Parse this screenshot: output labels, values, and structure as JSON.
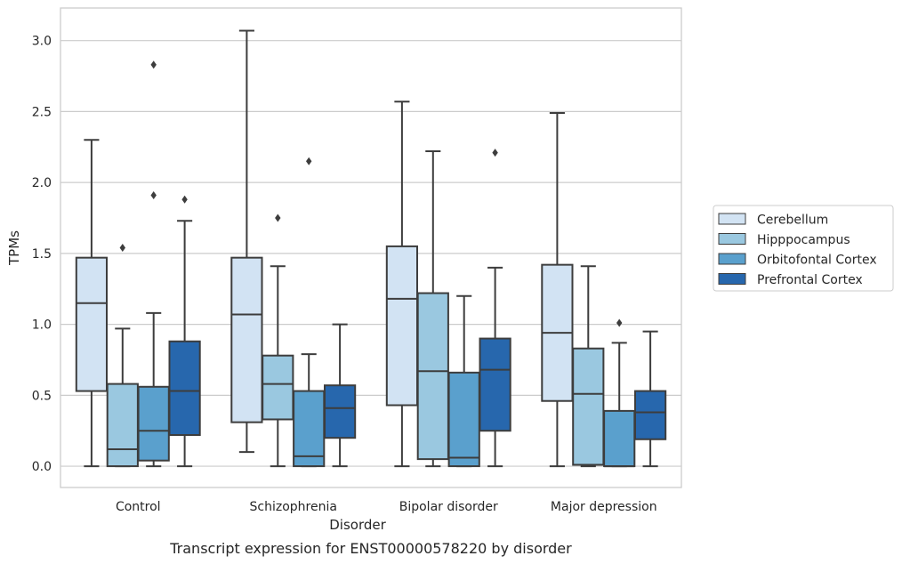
{
  "caption": "Transcript expression for ENST00000578220 by disorder",
  "chart_data": {
    "type": "box",
    "title": "",
    "xlabel": "Disorder",
    "ylabel": "TPMs",
    "ylim": [
      -0.15,
      3.23
    ],
    "yticks": [
      0.0,
      0.5,
      1.0,
      1.5,
      2.0,
      2.5,
      3.0
    ],
    "ytick_labels": [
      "0.0",
      "0.5",
      "1.0",
      "1.5",
      "2.0",
      "2.5",
      "3.0"
    ],
    "grid": "horizontal",
    "legend_position": "right",
    "categories": [
      "Control",
      "Schizophrenia",
      "Bipolar disorder",
      "Major depression"
    ],
    "series": [
      {
        "name": "Cerebellum",
        "color": "#d2e3f3",
        "boxes": [
          {
            "whisker_low": 0.0,
            "q1": 0.53,
            "median": 1.15,
            "q3": 1.47,
            "whisker_high": 2.3,
            "outliers": []
          },
          {
            "whisker_low": 0.1,
            "q1": 0.31,
            "median": 1.07,
            "q3": 1.47,
            "whisker_high": 3.07,
            "outliers": []
          },
          {
            "whisker_low": 0.0,
            "q1": 0.43,
            "median": 1.18,
            "q3": 1.55,
            "whisker_high": 2.57,
            "outliers": []
          },
          {
            "whisker_low": 0.0,
            "q1": 0.46,
            "median": 0.94,
            "q3": 1.42,
            "whisker_high": 2.49,
            "outliers": []
          }
        ]
      },
      {
        "name": "Hipppocampus",
        "color": "#9ac8e0",
        "boxes": [
          {
            "whisker_low": 0.0,
            "q1": 0.0,
            "median": 0.12,
            "q3": 0.58,
            "whisker_high": 0.97,
            "outliers": [
              1.54
            ]
          },
          {
            "whisker_low": 0.0,
            "q1": 0.33,
            "median": 0.58,
            "q3": 0.78,
            "whisker_high": 1.41,
            "outliers": [
              1.75
            ]
          },
          {
            "whisker_low": 0.0,
            "q1": 0.05,
            "median": 0.67,
            "q3": 1.22,
            "whisker_high": 2.22,
            "outliers": []
          },
          {
            "whisker_low": 0.0,
            "q1": 0.01,
            "median": 0.51,
            "q3": 0.83,
            "whisker_high": 1.41,
            "outliers": []
          }
        ]
      },
      {
        "name": "Orbitofontal Cortex",
        "color": "#5aa0cd",
        "boxes": [
          {
            "whisker_low": 0.0,
            "q1": 0.04,
            "median": 0.25,
            "q3": 0.56,
            "whisker_high": 1.08,
            "outliers": [
              1.91,
              2.83
            ]
          },
          {
            "whisker_low": 0.0,
            "q1": 0.0,
            "median": 0.07,
            "q3": 0.53,
            "whisker_high": 0.79,
            "outliers": [
              2.15
            ]
          },
          {
            "whisker_low": 0.0,
            "q1": 0.0,
            "median": 0.06,
            "q3": 0.66,
            "whisker_high": 1.2,
            "outliers": []
          },
          {
            "whisker_low": 0.0,
            "q1": 0.0,
            "median": 0.0,
            "q3": 0.39,
            "whisker_high": 0.87,
            "outliers": [
              1.01
            ]
          }
        ]
      },
      {
        "name": "Prefrontal Cortex",
        "color": "#2767ad",
        "boxes": [
          {
            "whisker_low": 0.0,
            "q1": 0.22,
            "median": 0.53,
            "q3": 0.88,
            "whisker_high": 1.73,
            "outliers": [
              1.88
            ]
          },
          {
            "whisker_low": 0.0,
            "q1": 0.2,
            "median": 0.41,
            "q3": 0.57,
            "whisker_high": 1.0,
            "outliers": []
          },
          {
            "whisker_low": 0.0,
            "q1": 0.25,
            "median": 0.68,
            "q3": 0.9,
            "whisker_high": 1.4,
            "outliers": [
              2.21
            ]
          },
          {
            "whisker_low": 0.0,
            "q1": 0.19,
            "median": 0.38,
            "q3": 0.53,
            "whisker_high": 0.95,
            "outliers": []
          }
        ]
      }
    ]
  }
}
